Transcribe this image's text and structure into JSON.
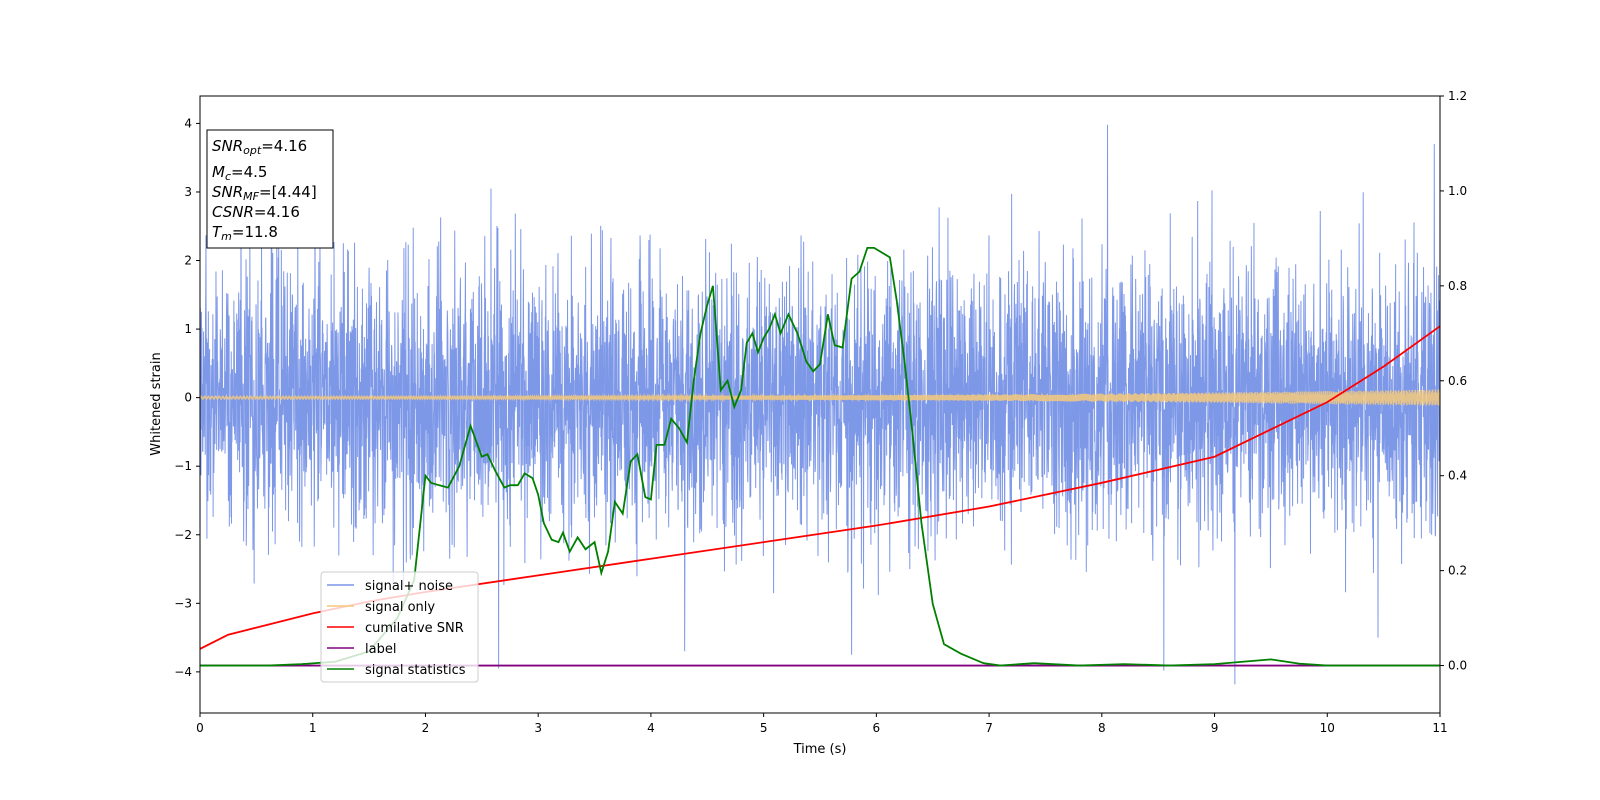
{
  "chart_data": {
    "type": "line",
    "xlabel": "Time (s)",
    "ylabel": "Whitened strain",
    "xlim": [
      0,
      11
    ],
    "ylim": [
      -4.6,
      4.4
    ],
    "y2lim": [
      -0.1,
      1.2
    ],
    "x_ticks": [
      0,
      1,
      2,
      3,
      4,
      5,
      6,
      7,
      8,
      9,
      10,
      11
    ],
    "y_ticks": [
      -4,
      -3,
      -2,
      -1,
      0,
      1,
      2,
      3,
      4
    ],
    "y2_ticks": [
      "0.0",
      "0.2",
      "0.4",
      "0.6",
      "0.8",
      "1.0",
      "1.2"
    ],
    "legend_position": "lower-left",
    "grid": false,
    "info_box": {
      "snr_opt": {
        "sym": "SNR",
        "sub": "opt",
        "value": "=4.16"
      },
      "mc": {
        "sym": "M",
        "sub": "c",
        "value": "=4.5"
      },
      "snr_mf": {
        "sym": "SNR",
        "sub": "MF",
        "value": "=[4.44]"
      },
      "csnr": {
        "sym": "CSNR",
        "value": "=4.16"
      },
      "tm": {
        "sym": "T",
        "sub": "m",
        "value": "=11.8"
      }
    },
    "series": [
      {
        "name": "signal+ noise",
        "axis": "left",
        "color": "#7b96e8",
        "kind": "noise",
        "envelope": 2.35,
        "peaks": [
          [
            1.02,
            2.85
          ],
          [
            2.65,
            -3.95
          ],
          [
            4.3,
            -3.7
          ],
          [
            5.78,
            -3.75
          ],
          [
            8.05,
            3.98
          ],
          [
            8.55,
            -3.98
          ],
          [
            9.18,
            -4.18
          ],
          [
            10.45,
            -3.5
          ],
          [
            10.95,
            3.7
          ]
        ]
      },
      {
        "name": "signal only",
        "axis": "left",
        "color": "#f5c97a",
        "kind": "chirp",
        "amplitude_start": 0.02,
        "amplitude_end": 0.12
      },
      {
        "name": "cumilative SNR",
        "axis": "right",
        "color": "#ff0000",
        "x": [
          0,
          0.25,
          0.5,
          1,
          1.5,
          2,
          3,
          4,
          5,
          6,
          7,
          8,
          9,
          10,
          10.5,
          11
        ],
        "y": [
          0.035,
          0.065,
          0.08,
          0.11,
          0.135,
          0.155,
          0.19,
          0.225,
          0.26,
          0.295,
          0.335,
          0.385,
          0.44,
          0.555,
          0.63,
          0.715
        ]
      },
      {
        "name": "label",
        "axis": "right",
        "color": "#800080",
        "x": [
          0,
          11
        ],
        "y": [
          0.0,
          0.0
        ]
      },
      {
        "name": "signal statistics",
        "axis": "right",
        "color": "#008000",
        "x": [
          0,
          0.6,
          0.9,
          1.2,
          1.5,
          1.75,
          1.9,
          2.0,
          2.05,
          2.12,
          2.2,
          2.3,
          2.4,
          2.5,
          2.55,
          2.62,
          2.7,
          2.75,
          2.82,
          2.88,
          2.95,
          3.0,
          3.05,
          3.12,
          3.18,
          3.22,
          3.28,
          3.35,
          3.42,
          3.5,
          3.56,
          3.62,
          3.68,
          3.75,
          3.82,
          3.88,
          3.95,
          4.0,
          4.05,
          4.12,
          4.18,
          4.25,
          4.32,
          4.38,
          4.44,
          4.5,
          4.55,
          4.62,
          4.68,
          4.74,
          4.8,
          4.85,
          4.9,
          4.95,
          5.0,
          5.05,
          5.1,
          5.15,
          5.22,
          5.3,
          5.38,
          5.44,
          5.5,
          5.57,
          5.63,
          5.7,
          5.78,
          5.85,
          5.92,
          5.98,
          6.05,
          6.12,
          6.18,
          6.25,
          6.32,
          6.4,
          6.5,
          6.6,
          6.75,
          6.95,
          7.1,
          7.4,
          7.8,
          8.2,
          8.6,
          9.0,
          9.25,
          9.5,
          9.75,
          10.0,
          10.5,
          11
        ],
        "y": [
          0.0,
          0.0,
          0.003,
          0.008,
          0.03,
          0.1,
          0.18,
          0.4,
          0.385,
          0.38,
          0.375,
          0.42,
          0.505,
          0.44,
          0.445,
          0.41,
          0.375,
          0.38,
          0.38,
          0.405,
          0.395,
          0.36,
          0.3,
          0.265,
          0.26,
          0.28,
          0.24,
          0.27,
          0.245,
          0.26,
          0.195,
          0.24,
          0.345,
          0.32,
          0.43,
          0.445,
          0.355,
          0.35,
          0.465,
          0.465,
          0.52,
          0.5,
          0.47,
          0.6,
          0.7,
          0.76,
          0.8,
          0.58,
          0.6,
          0.545,
          0.58,
          0.68,
          0.7,
          0.66,
          0.69,
          0.71,
          0.74,
          0.7,
          0.74,
          0.7,
          0.64,
          0.62,
          0.635,
          0.74,
          0.675,
          0.67,
          0.815,
          0.83,
          0.88,
          0.88,
          0.87,
          0.86,
          0.77,
          0.64,
          0.49,
          0.3,
          0.13,
          0.045,
          0.025,
          0.005,
          0.0,
          0.005,
          0.0,
          0.003,
          0.0,
          0.003,
          0.008,
          0.013,
          0.004,
          0.0,
          0.0,
          0.0
        ]
      }
    ]
  }
}
